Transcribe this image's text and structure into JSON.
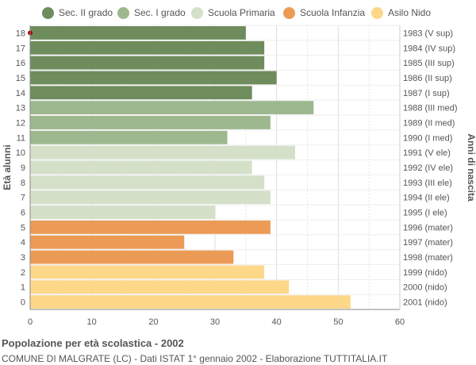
{
  "legend": [
    {
      "label": "Sec. II grado",
      "color": "#6e8c5c"
    },
    {
      "label": "Sec. I grado",
      "color": "#9db88f"
    },
    {
      "label": "Scuola Primaria",
      "color": "#d4e0c8"
    },
    {
      "label": "Scuola Infanzia",
      "color": "#eb9b55"
    },
    {
      "label": "Asilo Nido",
      "color": "#fdd889"
    }
  ],
  "footer": {
    "title": "Popolazione per età scolastica - 2002",
    "subtitle": "COMUNE DI MALGRATE (LC) - Dati ISTAT 1° gennaio 2002 - Elaborazione TUTTITALIA.IT"
  },
  "chart_data": {
    "type": "bar",
    "orientation": "horizontal",
    "ylabel": "Età alunni",
    "ylabel_right": "Anni di nascita",
    "xlim": [
      0,
      60
    ],
    "xticks": [
      0,
      10,
      20,
      30,
      40,
      50,
      60
    ],
    "grid": true,
    "legend_position": "top",
    "rows": [
      {
        "age": "18",
        "year": "1983 (V sup)",
        "value": 35,
        "group": 0
      },
      {
        "age": "17",
        "year": "1984 (IV sup)",
        "value": 38,
        "group": 0
      },
      {
        "age": "16",
        "year": "1985 (III sup)",
        "value": 38,
        "group": 0
      },
      {
        "age": "15",
        "year": "1986 (II sup)",
        "value": 40,
        "group": 0
      },
      {
        "age": "14",
        "year": "1987 (I sup)",
        "value": 36,
        "group": 0
      },
      {
        "age": "13",
        "year": "1988 (III med)",
        "value": 46,
        "group": 1
      },
      {
        "age": "12",
        "year": "1989 (II med)",
        "value": 39,
        "group": 1
      },
      {
        "age": "11",
        "year": "1990 (I med)",
        "value": 32,
        "group": 1
      },
      {
        "age": "10",
        "year": "1991 (V ele)",
        "value": 43,
        "group": 2
      },
      {
        "age": "9",
        "year": "1992 (IV ele)",
        "value": 36,
        "group": 2
      },
      {
        "age": "8",
        "year": "1993 (III ele)",
        "value": 38,
        "group": 2
      },
      {
        "age": "7",
        "year": "1994 (II ele)",
        "value": 39,
        "group": 2
      },
      {
        "age": "6",
        "year": "1995 (I ele)",
        "value": 30,
        "group": 2
      },
      {
        "age": "5",
        "year": "1996 (mater)",
        "value": 39,
        "group": 3
      },
      {
        "age": "4",
        "year": "1997 (mater)",
        "value": 25,
        "group": 3
      },
      {
        "age": "3",
        "year": "1998 (mater)",
        "value": 33,
        "group": 3
      },
      {
        "age": "2",
        "year": "1999 (nido)",
        "value": 38,
        "group": 4
      },
      {
        "age": "1",
        "year": "2000 (nido)",
        "value": 42,
        "group": 4
      },
      {
        "age": "0",
        "year": "2001 (nido)",
        "value": 52,
        "group": 4
      }
    ]
  }
}
